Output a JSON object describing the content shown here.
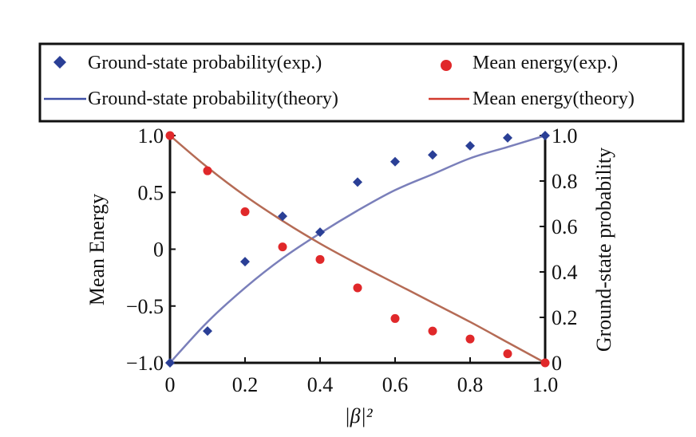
{
  "chart_data": {
    "type": "scatter",
    "legend": {
      "placement": "top",
      "entries": [
        {
          "label": "Ground-state probability(exp.)",
          "marker": "diamond",
          "color": "#2a3f96"
        },
        {
          "label": "Mean energy(exp.)",
          "marker": "circle",
          "color": "#e0282a"
        },
        {
          "label": "Ground-state probability(theory)",
          "marker": "line",
          "color": "#3e4fa6"
        },
        {
          "label": "Mean energy(theory)",
          "marker": "line",
          "color": "#d23a2e"
        }
      ]
    },
    "xlabel": "|β|²",
    "ylabel_left": "Mean Energy",
    "ylabel_right": "Ground-state probability",
    "xlim": [
      0,
      1
    ],
    "ylim_left": [
      -1,
      1
    ],
    "ylim_right": [
      0,
      1
    ],
    "x_ticks": [
      "0",
      "0.2",
      "0.4",
      "0.6",
      "0.8",
      "1.0"
    ],
    "x_tick_values": [
      0,
      0.2,
      0.4,
      0.6,
      0.8,
      1.0
    ],
    "y_left_ticks": [
      "1.0",
      "0.5",
      "0",
      "−0.5",
      "−1.0"
    ],
    "y_left_tick_values": [
      1.0,
      0.5,
      0,
      -0.5,
      -1.0
    ],
    "y_right_ticks": [
      "1.0",
      "0.8",
      "0.6",
      "0.4",
      "0.2",
      "0"
    ],
    "y_right_tick_values": [
      1.0,
      0.8,
      0.6,
      0.4,
      0.2,
      0
    ],
    "grid": false,
    "series": [
      {
        "name": "Ground-state probability(exp.)",
        "axis": "right",
        "style": "markers",
        "x": [
          0,
          0.1,
          0.2,
          0.3,
          0.4,
          0.5,
          0.6,
          0.7,
          0.8,
          0.9,
          1.0
        ],
        "y": [
          0.0,
          0.14,
          0.445,
          0.645,
          0.575,
          0.795,
          0.885,
          0.915,
          0.955,
          0.99,
          1.0
        ]
      },
      {
        "name": "Mean energy(exp.)",
        "axis": "left",
        "style": "markers",
        "x": [
          0,
          0.1,
          0.2,
          0.3,
          0.4,
          0.5,
          0.6,
          0.7,
          0.8,
          0.9,
          1.0
        ],
        "y": [
          1.0,
          0.69,
          0.33,
          0.02,
          -0.09,
          -0.34,
          -0.61,
          -0.72,
          -0.79,
          -0.92,
          -1.0
        ]
      },
      {
        "name": "Ground-state probability(theory)",
        "axis": "right",
        "style": "line",
        "x": [
          0,
          0.1,
          0.2,
          0.3,
          0.4,
          0.5,
          0.6,
          0.7,
          0.8,
          0.9,
          1.0
        ],
        "y": [
          0.0,
          0.18,
          0.33,
          0.46,
          0.57,
          0.67,
          0.76,
          0.83,
          0.9,
          0.95,
          1.0
        ]
      },
      {
        "name": "Mean energy(theory)",
        "axis": "left",
        "style": "line",
        "x": [
          0,
          0.1,
          0.2,
          0.3,
          0.4,
          0.5,
          0.6,
          0.7,
          0.8,
          0.9,
          1.0
        ],
        "y": [
          1.0,
          0.72,
          0.47,
          0.25,
          0.05,
          -0.13,
          -0.3,
          -0.47,
          -0.64,
          -0.82,
          -1.0
        ]
      }
    ]
  }
}
